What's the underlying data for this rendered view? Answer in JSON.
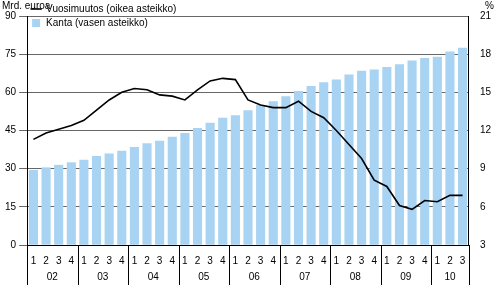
{
  "chart_data": {
    "type": "bar",
    "y_label": "Mrd. euroa",
    "y2_label": "%",
    "categories": [
      "1",
      "2",
      "3",
      "4",
      "1",
      "2",
      "3",
      "4",
      "1",
      "2",
      "3",
      "4",
      "1",
      "2",
      "3",
      "4",
      "1",
      "2",
      "3",
      "4",
      "1",
      "2",
      "3",
      "4",
      "1",
      "2",
      "3",
      "4",
      "1",
      "2",
      "3",
      "4",
      "1",
      "2",
      "3"
    ],
    "x_groups": [
      {
        "label": "02",
        "count": 4
      },
      {
        "label": "03",
        "count": 4
      },
      {
        "label": "04",
        "count": 4
      },
      {
        "label": "05",
        "count": 4
      },
      {
        "label": "06",
        "count": 4
      },
      {
        "label": "07",
        "count": 4
      },
      {
        "label": "08",
        "count": 4
      },
      {
        "label": "09",
        "count": 4
      },
      {
        "label": "10",
        "count": 3
      }
    ],
    "series": [
      {
        "name": "Kanta (vasen asteikko)",
        "type": "bar",
        "color": "#a9d3f2",
        "values": [
          29.5,
          30.5,
          31.5,
          32.5,
          33.5,
          35,
          36,
          37,
          38.5,
          40,
          41,
          42.5,
          44,
          46,
          48,
          50,
          51,
          53,
          55,
          56.5,
          58.5,
          60.5,
          62.5,
          64,
          65,
          67,
          68.5,
          69,
          70,
          71,
          72.5,
          73.5,
          74,
          76,
          77.5
        ]
      },
      {
        "name": "Vuosimuutos (oikea asteikko)",
        "type": "line",
        "color": "#000000",
        "axis": "y2",
        "values": [
          11.3,
          11.8,
          12.1,
          12.4,
          12.8,
          13.6,
          14.4,
          15,
          15.3,
          15.2,
          14.8,
          14.7,
          14.4,
          15.2,
          15.9,
          16.1,
          16,
          14.4,
          14,
          13.8,
          13.8,
          14.3,
          13.5,
          13,
          12,
          10.9,
          9.8,
          8.1,
          7.6,
          6.1,
          5.8,
          6.5,
          6.4,
          6.9,
          6.9
        ]
      }
    ],
    "ylim": [
      0,
      90
    ],
    "yticks": [
      0,
      15,
      30,
      45,
      60,
      75,
      90
    ],
    "y2lim": [
      3,
      21
    ],
    "y2ticks": [
      3,
      6,
      9,
      12,
      15,
      18,
      21
    ],
    "grid": true,
    "legend": "top-left"
  }
}
